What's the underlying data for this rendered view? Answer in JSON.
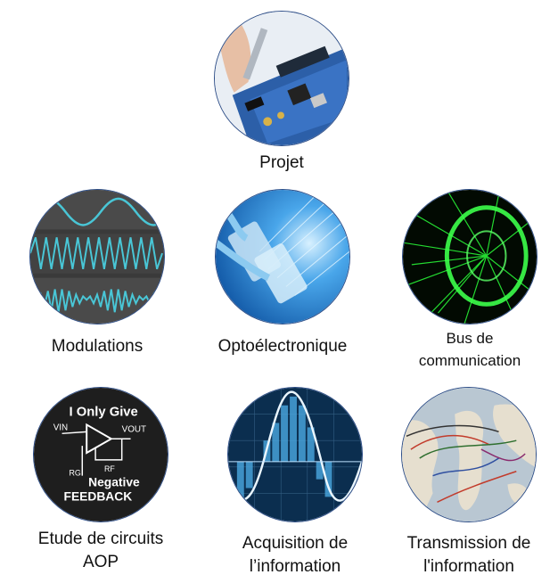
{
  "tiles": [
    {
      "id": "projet",
      "label_lines": [
        "Projet"
      ],
      "icon": "circuit-board-photo"
    },
    {
      "id": "modulations",
      "label_lines": [
        "Modulations"
      ],
      "icon": "modulation-waves-photo"
    },
    {
      "id": "opto",
      "label_lines": [
        "Optoélectronique"
      ],
      "icon": "fiber-optic-photo"
    },
    {
      "id": "bus",
      "label_lines": [
        "Bus de",
        "communication"
      ],
      "icon": "data-tunnel-photo"
    },
    {
      "id": "aop",
      "label_lines": [
        "Etude de circuits",
        "AOP"
      ],
      "icon": "op-amp-feedback-photo"
    },
    {
      "id": "acquisition",
      "label_lines": [
        "Acquisition de",
        "l’information"
      ],
      "icon": "signal-sampling-photo"
    },
    {
      "id": "transmission",
      "label_lines": [
        "Transmission de",
        "l'information"
      ],
      "icon": "cable-map-photo"
    }
  ],
  "aop_text": {
    "line1": "I  Only  Give",
    "vin": "VIN",
    "vout": "VOUT",
    "rf": "RF",
    "rg": "RG",
    "line2": "Negative",
    "line3": "FEEDBACK"
  }
}
